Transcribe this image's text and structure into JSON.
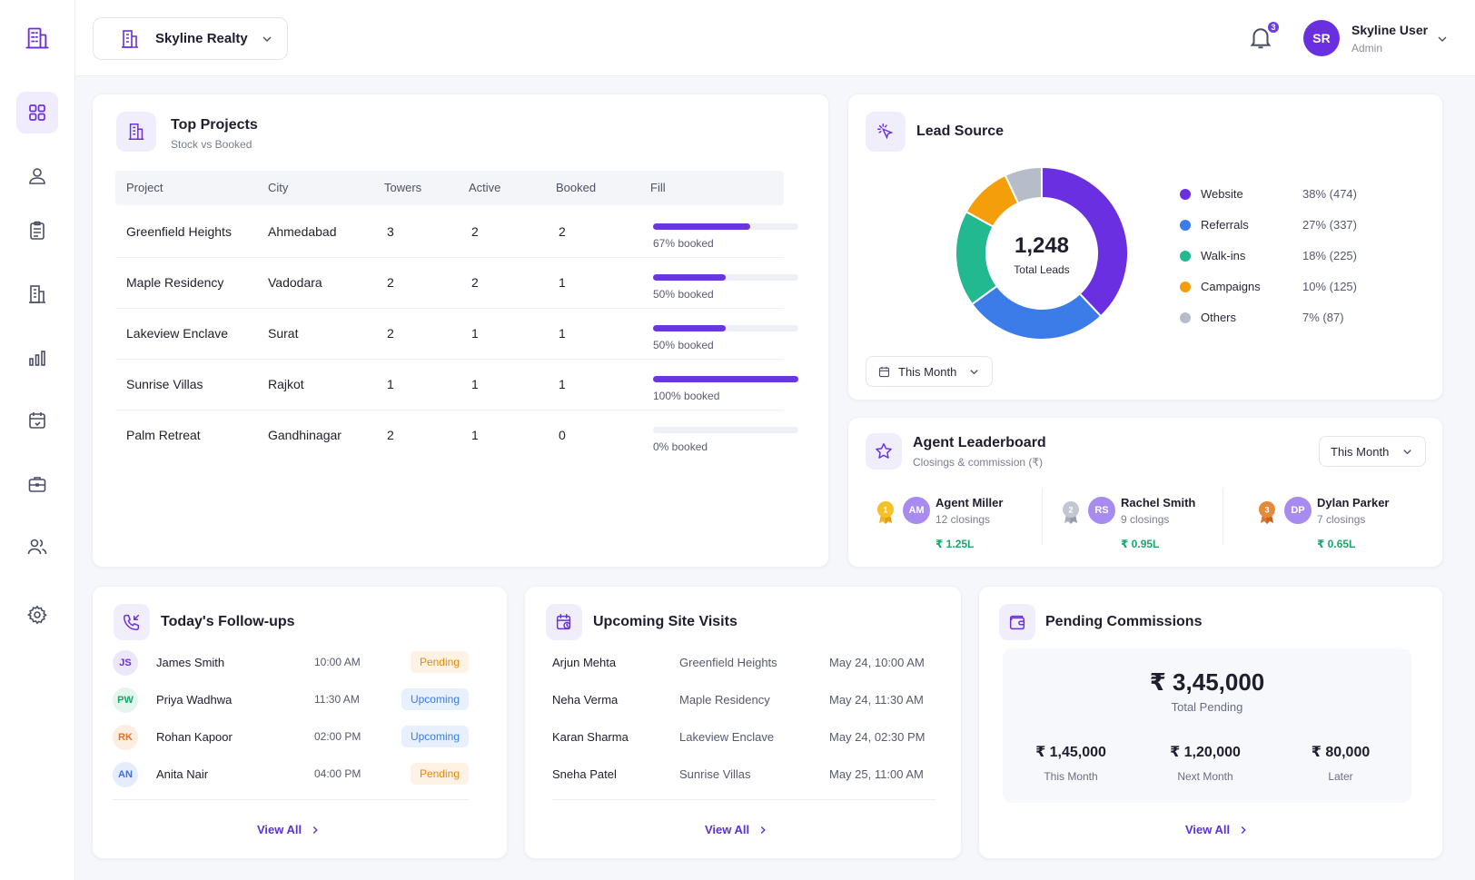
{
  "app": {
    "org_name": "Skyline Realty",
    "notification_count": "3",
    "user": {
      "initials": "SR",
      "name": "Skyline User",
      "role": "Admin"
    }
  },
  "top_projects": {
    "title": "Top Projects",
    "subtitle": "Stock vs Booked",
    "columns": [
      "Project",
      "City",
      "Towers",
      "Active",
      "Booked",
      "Fill"
    ],
    "rows": [
      {
        "project": "Greenfield Heights",
        "city": "Ahmedabad",
        "towers": "3",
        "active": "2",
        "booked": "2",
        "fill_pct": 67,
        "fill_label": "67% booked"
      },
      {
        "project": "Maple Residency",
        "city": "Vadodara",
        "towers": "2",
        "active": "2",
        "booked": "1",
        "fill_pct": 50,
        "fill_label": "50% booked"
      },
      {
        "project": "Lakeview Enclave",
        "city": "Surat",
        "towers": "2",
        "active": "1",
        "booked": "1",
        "fill_pct": 50,
        "fill_label": "50% booked"
      },
      {
        "project": "Sunrise Villas",
        "city": "Rajkot",
        "towers": "1",
        "active": "1",
        "booked": "1",
        "fill_pct": 100,
        "fill_label": "100% booked"
      },
      {
        "project": "Palm Retreat",
        "city": "Gandhinagar",
        "towers": "2",
        "active": "1",
        "booked": "0",
        "fill_pct": 0,
        "fill_label": "0% booked"
      }
    ]
  },
  "lead_source": {
    "title": "Lead Source",
    "total": "1,248",
    "total_label": "Total Leads",
    "period": "This Month",
    "legend": [
      {
        "name": "Website",
        "value": "38% (474)",
        "color": "#6a2fe0"
      },
      {
        "name": "Referrals",
        "value": "27% (337)",
        "color": "#3b7ce8"
      },
      {
        "name": "Walk-ins",
        "value": "18% (225)",
        "color": "#22b890"
      },
      {
        "name": "Campaigns",
        "value": "10% (125)",
        "color": "#f59e0b"
      },
      {
        "name": "Others",
        "value": "7% (87)",
        "color": "#b7bcc9"
      }
    ]
  },
  "chart_data": {
    "type": "pie",
    "title": "Lead Source",
    "categories": [
      "Website",
      "Referrals",
      "Walk-ins",
      "Campaigns",
      "Others"
    ],
    "values": [
      474,
      337,
      225,
      125,
      87
    ],
    "percent": [
      38,
      27,
      18,
      10,
      7
    ],
    "colors": [
      "#6a2fe0",
      "#3b7ce8",
      "#22b890",
      "#f59e0b",
      "#b7bcc9"
    ],
    "center_value": "1,248",
    "center_label": "Total Leads",
    "legend": "right"
  },
  "leaderboard": {
    "title": "Agent Leaderboard",
    "subtitle": "Closings & commission (₹)",
    "period": "This Month",
    "agents": [
      {
        "rank": "1",
        "initials": "AM",
        "name": "Agent Miller",
        "closings": "12 closings",
        "amount": "₹ 1.25L"
      },
      {
        "rank": "2",
        "initials": "RS",
        "name": "Rachel Smith",
        "closings": "9 closings",
        "amount": "₹ 0.95L"
      },
      {
        "rank": "3",
        "initials": "DP",
        "name": "Dylan Parker",
        "closings": "7 closings",
        "amount": "₹ 0.65L"
      }
    ]
  },
  "followups": {
    "title": "Today's Follow-ups",
    "items": [
      {
        "initials": "JS",
        "name": "James Smith",
        "time": "10:00 AM",
        "status": "Pending"
      },
      {
        "initials": "PW",
        "name": "Priya Wadhwa",
        "time": "11:30 AM",
        "status": "Upcoming"
      },
      {
        "initials": "RK",
        "name": "Rohan Kapoor",
        "time": "02:00 PM",
        "status": "Upcoming"
      },
      {
        "initials": "AN",
        "name": "Anita Nair",
        "time": "04:00 PM",
        "status": "Pending"
      }
    ],
    "view_all": "View All"
  },
  "site_visits": {
    "title": "Upcoming Site Visits",
    "items": [
      {
        "name": "Arjun Mehta",
        "project": "Greenfield Heights",
        "date": "May 24, 10:00 AM"
      },
      {
        "name": "Neha Verma",
        "project": "Maple Residency",
        "date": "May 24, 11:30 AM"
      },
      {
        "name": "Karan Sharma",
        "project": "Lakeview Enclave",
        "date": "May 24, 02:30 PM"
      },
      {
        "name": "Sneha Patel",
        "project": "Sunrise Villas",
        "date": "May 25, 11:00 AM"
      }
    ],
    "view_all": "View All"
  },
  "commissions": {
    "title": "Pending Commissions",
    "total": "₹ 3,45,000",
    "total_label": "Total Pending",
    "breakdown": [
      {
        "amount": "₹ 1,45,000",
        "label": "This Month"
      },
      {
        "amount": "₹ 1,20,000",
        "label": "Next Month"
      },
      {
        "amount": "₹ 80,000",
        "label": "Later"
      }
    ],
    "view_all": "View All"
  },
  "colors": {
    "accent": "#6a2fe0",
    "success": "#17a86a",
    "pending_bg": "#fdf2e3",
    "pending_fg": "#e38a12",
    "upcoming_bg": "#e8f0fd",
    "upcoming_fg": "#3b7ce8"
  }
}
